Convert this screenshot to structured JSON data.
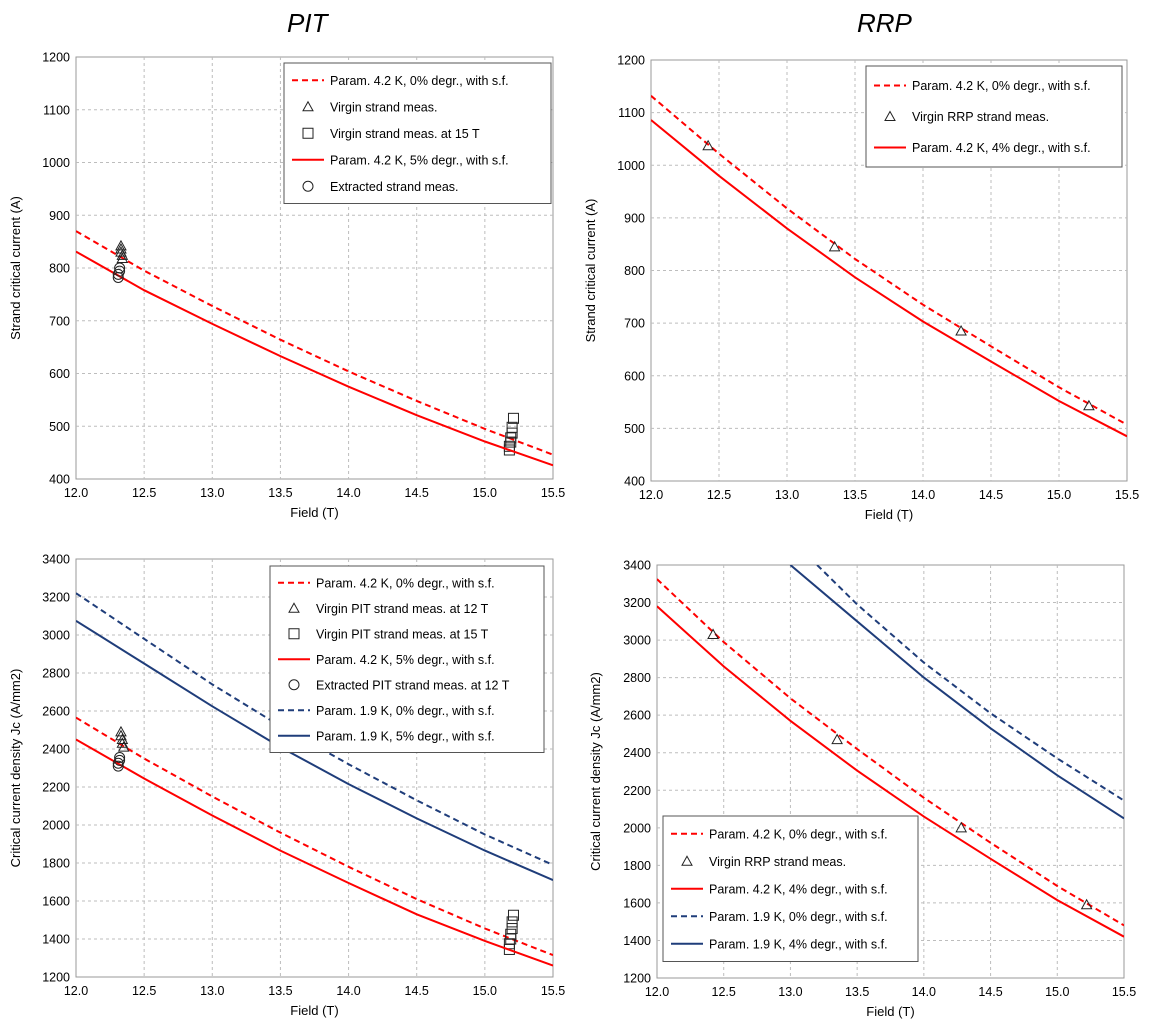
{
  "headers": {
    "left": "PIT",
    "right": "RRP"
  },
  "chart_data": [
    {
      "type": "line",
      "xlabel": "Field (T)",
      "ylabel": "Strand critical current (A)",
      "xlim": [
        12.0,
        15.5
      ],
      "ylim": [
        400,
        1200
      ],
      "xticks": [
        "12.0",
        "12.5",
        "13.0",
        "13.5",
        "14.0",
        "14.5",
        "15.0",
        "15.5"
      ],
      "yticks": [
        "400",
        "500",
        "600",
        "700",
        "800",
        "900",
        "1000",
        "1100",
        "1200"
      ],
      "grid": true,
      "legend_position": "top-right",
      "series": [
        {
          "name": "Param. 4.2 K, 0% degr., with s.f.",
          "style": "dashed",
          "color": "#ff0000",
          "x": [
            12.0,
            12.5,
            13.0,
            13.5,
            14.0,
            14.5,
            15.0,
            15.5
          ],
          "y": [
            870,
            795,
            728,
            664,
            604,
            548,
            495,
            446
          ]
        },
        {
          "name": "Virgin strand meas.",
          "style": "triangle",
          "x": [
            12.33,
            12.33,
            12.33,
            12.34,
            12.34
          ],
          "y": [
            842,
            836,
            830,
            824,
            818
          ]
        },
        {
          "name": "Virgin strand meas. at 15 T",
          "style": "square",
          "x": [
            15.18,
            15.18,
            15.19,
            15.19,
            15.2,
            15.2,
            15.21
          ],
          "y": [
            455,
            462,
            470,
            478,
            487,
            498,
            515
          ]
        },
        {
          "name": "Param. 4.2 K, 5% degr., with s.f.",
          "style": "solid",
          "color": "#ff0000",
          "x": [
            12.0,
            12.5,
            13.0,
            13.5,
            14.0,
            14.5,
            15.0,
            15.5
          ],
          "y": [
            831,
            758,
            694,
            633,
            575,
            521,
            471,
            426
          ]
        },
        {
          "name": "Extracted strand meas.",
          "style": "circle",
          "x": [
            12.31,
            12.31,
            12.32,
            12.32
          ],
          "y": [
            782,
            788,
            794,
            800
          ]
        }
      ]
    },
    {
      "type": "line",
      "xlabel": "Field (T)",
      "ylabel": "Strand critical current (A)",
      "xlim": [
        12.0,
        15.5
      ],
      "ylim": [
        400,
        1200
      ],
      "xticks": [
        "12.0",
        "12.5",
        "13.0",
        "13.5",
        "14.0",
        "14.5",
        "15.0",
        "15.5"
      ],
      "yticks": [
        "400",
        "500",
        "600",
        "700",
        "800",
        "900",
        "1000",
        "1100",
        "1200"
      ],
      "grid": true,
      "legend_position": "top-right",
      "series": [
        {
          "name": "Param. 4.2 K, 0% degr., with s.f.",
          "style": "dashed",
          "color": "#ff0000",
          "x": [
            12.0,
            12.5,
            13.0,
            13.5,
            14.0,
            14.5,
            15.0,
            15.5
          ],
          "y": [
            1132,
            1022,
            918,
            822,
            735,
            656,
            578,
            507
          ]
        },
        {
          "name": "Virgin RRP strand meas.",
          "style": "triangle",
          "x": [
            12.42,
            13.35,
            14.28,
            15.22
          ],
          "y": [
            1037,
            845,
            685,
            543
          ]
        },
        {
          "name": "Param. 4.2 K, 4% degr., with s.f.",
          "style": "solid",
          "color": "#ff0000",
          "x": [
            12.0,
            12.5,
            13.0,
            13.5,
            14.0,
            14.5,
            15.0,
            15.5
          ],
          "y": [
            1086,
            980,
            880,
            787,
            703,
            627,
            552,
            485
          ]
        }
      ]
    },
    {
      "type": "line",
      "xlabel": "Field (T)",
      "ylabel": "Critical current density Jc (A/mm2)",
      "xlim": [
        12.0,
        15.5
      ],
      "ylim": [
        1200,
        3400
      ],
      "xticks": [
        "12.0",
        "12.5",
        "13.0",
        "13.5",
        "14.0",
        "14.5",
        "15.0",
        "15.5"
      ],
      "yticks": [
        "1200",
        "1400",
        "1600",
        "1800",
        "2000",
        "2200",
        "2400",
        "2600",
        "2800",
        "3000",
        "3200",
        "3400"
      ],
      "grid": true,
      "legend_position": "top-right",
      "series": [
        {
          "name": "Param. 4.2 K, 0% degr., with s.f.",
          "style": "dashed",
          "color": "#ff0000",
          "x": [
            12.0,
            12.5,
            13.0,
            13.5,
            14.0,
            14.5,
            15.0,
            15.5
          ],
          "y": [
            2565,
            2350,
            2150,
            1960,
            1780,
            1610,
            1455,
            1315
          ]
        },
        {
          "name": "Virgin PIT strand meas. at 12 T",
          "style": "triangle",
          "x": [
            12.33,
            12.33,
            12.34,
            12.34,
            12.35
          ],
          "y": [
            2490,
            2470,
            2450,
            2430,
            2410
          ]
        },
        {
          "name": "Virgin PIT strand meas. at 15 T",
          "style": "square",
          "x": [
            15.18,
            15.18,
            15.19,
            15.19,
            15.2,
            15.2,
            15.21
          ],
          "y": [
            1345,
            1375,
            1400,
            1425,
            1455,
            1490,
            1525
          ]
        },
        {
          "name": "Param. 4.2 K, 5% degr., with s.f.",
          "style": "solid",
          "color": "#ff0000",
          "x": [
            12.0,
            12.5,
            13.0,
            13.5,
            14.0,
            14.5,
            15.0,
            15.5
          ],
          "y": [
            2450,
            2245,
            2050,
            1865,
            1695,
            1530,
            1390,
            1260
          ]
        },
        {
          "name": "Extracted PIT strand meas. at 12 T",
          "style": "circle",
          "x": [
            12.31,
            12.31,
            12.32,
            12.32
          ],
          "y": [
            2310,
            2325,
            2340,
            2355
          ]
        },
        {
          "name": "Param. 1.9 K, 0% degr., with s.f.",
          "style": "dashed",
          "color": "#1f3d7a",
          "x": [
            12.0,
            12.5,
            13.0,
            13.5,
            14.0,
            14.5,
            15.0,
            15.5
          ],
          "y": [
            3220,
            2980,
            2740,
            2520,
            2320,
            2130,
            1950,
            1790
          ]
        },
        {
          "name": "Param. 1.9 K, 5% degr., with s.f.",
          "style": "solid",
          "color": "#1f3d7a",
          "x": [
            12.0,
            12.5,
            13.0,
            13.5,
            14.0,
            14.5,
            15.0,
            15.5
          ],
          "y": [
            3075,
            2850,
            2625,
            2410,
            2215,
            2035,
            1865,
            1710
          ]
        }
      ]
    },
    {
      "type": "line",
      "xlabel": "Field (T)",
      "ylabel": "Critical current density Jc (A/mm2)",
      "xlim": [
        12.0,
        15.5
      ],
      "ylim": [
        1200,
        3400
      ],
      "xticks": [
        "12.0",
        "12.5",
        "13.0",
        "13.5",
        "14.0",
        "14.5",
        "15.0",
        "15.5"
      ],
      "yticks": [
        "1200",
        "1400",
        "1600",
        "1800",
        "2000",
        "2200",
        "2400",
        "2600",
        "2800",
        "3000",
        "3200",
        "3400"
      ],
      "grid": true,
      "legend_position": "bottom-left",
      "series": [
        {
          "name": "Param. 4.2 K, 0% degr., with s.f.",
          "style": "dashed",
          "color": "#ff0000",
          "x": [
            12.0,
            12.5,
            13.0,
            13.5,
            14.0,
            14.5,
            15.0,
            15.5
          ],
          "y": [
            3325,
            2990,
            2690,
            2420,
            2160,
            1920,
            1690,
            1480
          ]
        },
        {
          "name": "Virgin RRP strand meas.",
          "style": "triangle",
          "x": [
            12.42,
            13.35,
            14.28,
            15.22
          ],
          "y": [
            3030,
            2470,
            2000,
            1590
          ]
        },
        {
          "name": "Param. 4.2 K, 4% degr., with s.f.",
          "style": "solid",
          "color": "#ff0000",
          "x": [
            12.0,
            12.5,
            13.0,
            13.5,
            14.0,
            14.5,
            15.0,
            15.5
          ],
          "y": [
            3180,
            2860,
            2570,
            2305,
            2060,
            1835,
            1615,
            1420
          ]
        },
        {
          "name": "Param. 1.9 K, 0% degr., with s.f.",
          "style": "dashed",
          "color": "#1f3d7a",
          "x": [
            13.2,
            13.5,
            14.0,
            14.5,
            15.0,
            15.5
          ],
          "y": [
            3400,
            3190,
            2880,
            2610,
            2370,
            2145
          ]
        },
        {
          "name": "Param. 1.9 K, 4% degr., with s.f.",
          "style": "solid",
          "color": "#1f3d7a",
          "x": [
            13.0,
            13.5,
            14.0,
            14.5,
            15.0,
            15.5
          ],
          "y": [
            3400,
            3100,
            2800,
            2530,
            2280,
            2050
          ]
        }
      ]
    }
  ]
}
